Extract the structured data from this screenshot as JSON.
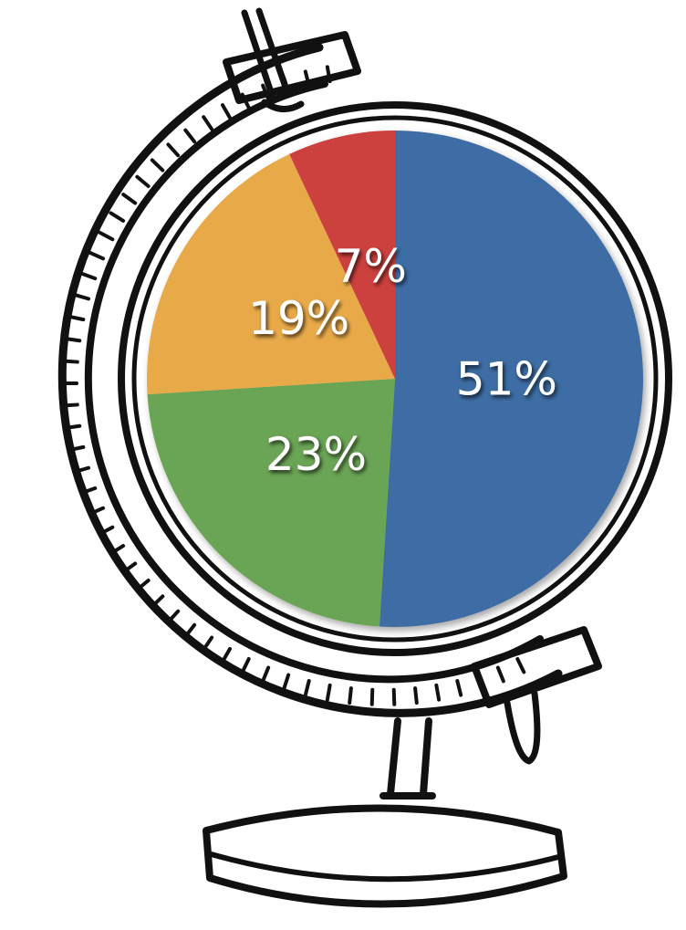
{
  "chart_data": {
    "type": "pie",
    "values": [
      51,
      23,
      19,
      7
    ],
    "value_labels": [
      "51%",
      "23%",
      "19%",
      "7%"
    ],
    "colors": [
      "#3d6da4",
      "#6aa454",
      "#e8aa4a",
      "#cc3f3c"
    ]
  }
}
